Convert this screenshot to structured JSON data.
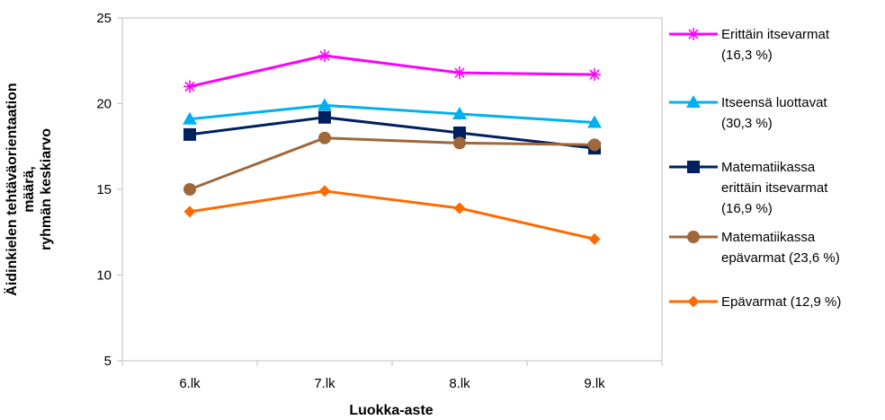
{
  "chart_data": {
    "type": "line",
    "categories": [
      "6.lk",
      "7.lk",
      "8.lk",
      "9.lk"
    ],
    "xlabel": "Luokka-aste",
    "ylabel_lines": [
      "Äidinkielen tehtäväorientaation",
      "määrä,",
      "ryhmän keskiarvo"
    ],
    "ylim": [
      5,
      25
    ],
    "yticks": [
      "5",
      "10",
      "15",
      "20",
      "25"
    ],
    "grid": false,
    "legend_position": "right",
    "series": [
      {
        "name_lines": [
          "Erittäin itsevarmat",
          "(16,3 %)"
        ],
        "values": [
          21.0,
          22.8,
          21.8,
          21.7
        ],
        "color": "#ff00ff",
        "marker": "star"
      },
      {
        "name_lines": [
          "Itseensä luottavat",
          "(30,3 %)"
        ],
        "values": [
          19.1,
          19.9,
          19.4,
          18.9
        ],
        "color": "#00b0f0",
        "marker": "triangle"
      },
      {
        "name_lines": [
          "Matematiikassa",
          "erittäin itsevarmat",
          "(16,9 %)"
        ],
        "values": [
          18.2,
          19.2,
          18.3,
          17.4
        ],
        "color": "#002060",
        "marker": "square"
      },
      {
        "name_lines": [
          "Matematiikassa",
          "epävarmat (23,6 %)"
        ],
        "values": [
          15.0,
          18.0,
          17.7,
          17.6
        ],
        "color": "#a0673a",
        "marker": "circle"
      },
      {
        "name_lines": [
          "Epävarmat (12,9 %)"
        ],
        "values": [
          13.7,
          14.9,
          13.9,
          12.1
        ],
        "color": "#ff6a00",
        "marker": "diamond"
      }
    ]
  }
}
